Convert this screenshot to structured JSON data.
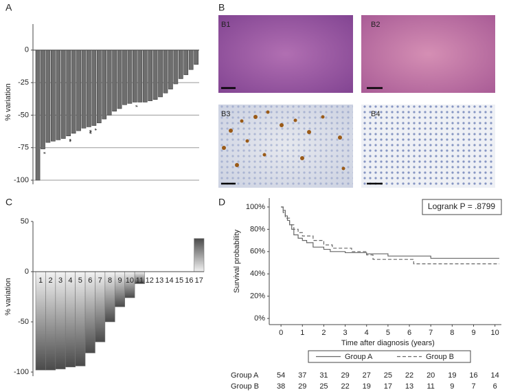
{
  "chart_data": [
    {
      "type": "bar",
      "label": "A",
      "ylabel": "% variation",
      "values": [
        -100,
        -76,
        -71,
        -70,
        -69,
        -68,
        -66,
        -64,
        -62,
        -60,
        -59,
        -58,
        -56,
        -53,
        -50,
        -47,
        -45,
        -42,
        -41,
        -40,
        -40,
        -40,
        -39,
        -38,
        -36,
        -33,
        -30,
        -26,
        -22,
        -19,
        -15,
        -11
      ],
      "annotations": [
        null,
        "*",
        null,
        null,
        null,
        null,
        "**",
        null,
        null,
        null,
        "***",
        "*",
        null,
        null,
        null,
        null,
        null,
        null,
        null,
        "*",
        null,
        null,
        null,
        null,
        null,
        null,
        null,
        null,
        null,
        null,
        null,
        null
      ],
      "color": "#6e6e6e",
      "ylim": [
        -100,
        20
      ],
      "yticks": [
        0,
        -25,
        -50,
        -75,
        -100
      ],
      "grid": true
    },
    {
      "type": "bar",
      "label": "C",
      "ylabel": "% variation",
      "categories": [
        "1",
        "2",
        "3",
        "4",
        "5",
        "6",
        "7",
        "8",
        "9",
        "10",
        "11",
        "12",
        "13",
        "14",
        "15",
        "16",
        "17"
      ],
      "values": [
        -98,
        -98,
        -97,
        -95,
        -94,
        -81,
        -70,
        -50,
        -35,
        -26,
        -12,
        0,
        0,
        0,
        0,
        0,
        33
      ],
      "color": "#666666",
      "ylim": [
        -100,
        50
      ],
      "yticks": [
        50,
        0,
        -50,
        -100
      ],
      "grid": false
    },
    {
      "type": "line",
      "label": "D",
      "xlabel": "Time after diagnosis (years)",
      "ylabel": "Survival probability",
      "xlim": [
        -0.55,
        10.3
      ],
      "xticks": [
        0,
        1,
        2,
        3,
        4,
        5,
        6,
        7,
        8,
        9,
        10
      ],
      "ylim": [
        -5.5,
        108
      ],
      "yticks": [
        {
          "value": 0,
          "label": "0%"
        },
        {
          "value": 20,
          "label": "20%"
        },
        {
          "value": 40,
          "label": "40%"
        },
        {
          "value": 60,
          "label": "60%"
        },
        {
          "value": 80,
          "label": "80%"
        },
        {
          "value": 100,
          "label": "100%"
        }
      ],
      "annotation": "Logrank P = .8799",
      "series": [
        {
          "name": "Group A",
          "color": "#666666",
          "dashed": false,
          "x": [
            0,
            0.1,
            0.2,
            0.3,
            0.4,
            0.5,
            0.6,
            0.8,
            1,
            1.2,
            1.5,
            2,
            2.3,
            3,
            4,
            5,
            7,
            10.2
          ],
          "values": [
            100,
            97,
            92,
            88,
            84,
            80,
            75,
            72,
            70,
            68,
            64,
            62,
            60,
            59,
            58,
            56,
            54,
            54
          ]
        },
        {
          "name": "Group B",
          "color": "#666666",
          "dashed": true,
          "x": [
            0,
            0.1,
            0.2,
            0.4,
            0.6,
            0.8,
            1,
            1.5,
            2,
            2.4,
            3.3,
            4,
            4.3,
            6.2,
            10.2
          ],
          "values": [
            100,
            95,
            90,
            84,
            80,
            77,
            74,
            70,
            66,
            63,
            60,
            57,
            53,
            49,
            49
          ]
        }
      ],
      "risk_table": [
        {
          "name": "Group A",
          "values": [
            54,
            37,
            31,
            29,
            27,
            25,
            22,
            20,
            19,
            16,
            14
          ]
        },
        {
          "name": "Group B",
          "values": [
            38,
            29,
            25,
            22,
            19,
            17,
            13,
            11,
            9,
            7,
            6
          ]
        }
      ]
    }
  ],
  "images": {
    "label": "B",
    "items": [
      "B1",
      "B2",
      "B3",
      "B4"
    ]
  }
}
